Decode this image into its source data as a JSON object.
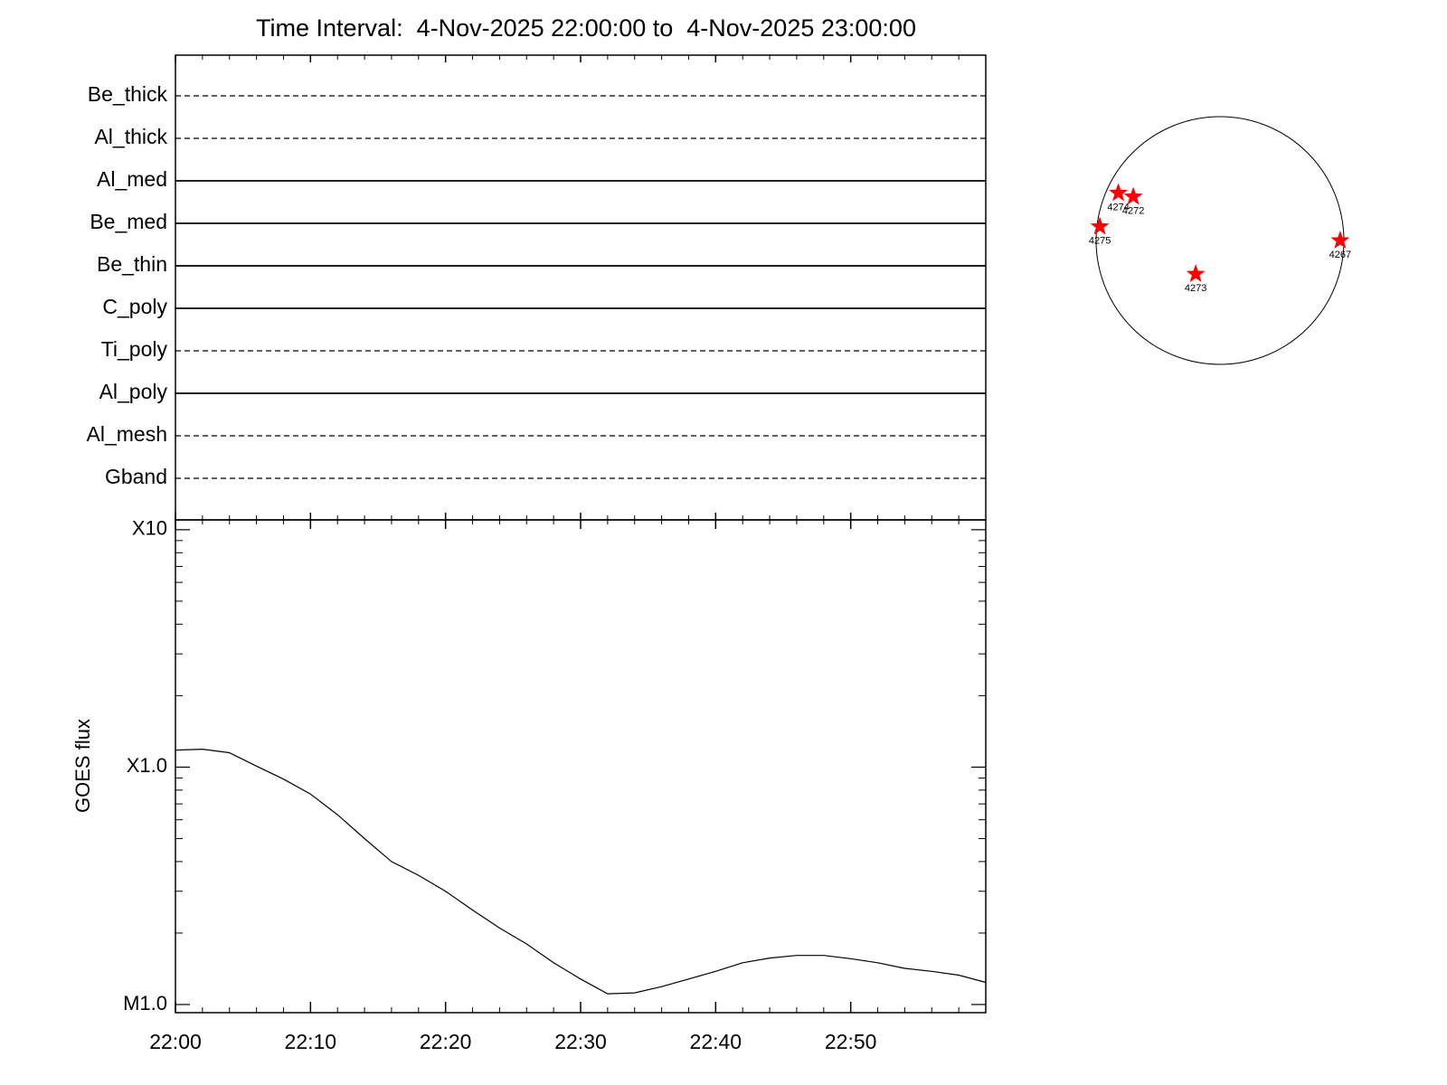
{
  "title": "Time Interval:  4-Nov-2025 22:00:00 to  4-Nov-2025 23:00:00",
  "chart_data": [
    {
      "type": "lines",
      "categories": [
        "Be_thick",
        "Al_thick",
        "Al_med",
        "Be_med",
        "Be_thin",
        "C_poly",
        "Ti_poly",
        "Al_poly",
        "Al_mesh",
        "Gband"
      ],
      "line_styles": [
        "dashed",
        "dashed",
        "solid",
        "solid",
        "solid",
        "solid",
        "dashed",
        "solid",
        "dashed",
        "dashed"
      ]
    },
    {
      "type": "line",
      "ylabel": "GOES flux",
      "color": "#000000",
      "log_y": true,
      "x": [
        "22:00",
        "22:02",
        "22:04",
        "22:06",
        "22:08",
        "22:10",
        "22:12",
        "22:14",
        "22:16",
        "22:18",
        "22:20",
        "22:22",
        "22:24",
        "22:26",
        "22:28",
        "22:30",
        "22:32",
        "22:34",
        "22:36",
        "22:38",
        "22:40",
        "22:42",
        "22:44",
        "22:46",
        "22:48",
        "22:50",
        "22:52",
        "22:54",
        "22:56",
        "22:58",
        "23:00"
      ],
      "values": [
        0.000118,
        0.000119,
        0.000115,
        0.000101,
        8.9e-05,
        7.7e-05,
        6.3e-05,
        5e-05,
        4e-05,
        3.5e-05,
        3e-05,
        2.5e-05,
        2.1e-05,
        1.8e-05,
        1.5e-05,
        1.28e-05,
        1.11e-05,
        1.12e-05,
        1.19e-05,
        1.28e-05,
        1.38e-05,
        1.5e-05,
        1.57e-05,
        1.61e-05,
        1.61e-05,
        1.56e-05,
        1.5e-05,
        1.42e-05,
        1.38e-05,
        1.33e-05,
        1.24e-05
      ],
      "xlim": [
        "22:00",
        "23:00"
      ],
      "xticks": [
        "22:00",
        "22:10",
        "22:20",
        "22:30",
        "22:40",
        "22:50"
      ],
      "ylim": [
        9.24e-06,
        0.0011
      ],
      "yticks": [
        {
          "value": 1e-05,
          "label": "M1.0"
        },
        {
          "value": 0.0001,
          "label": "X1.0"
        },
        {
          "value": 0.001,
          "label": "X10"
        }
      ]
    },
    {
      "type": "scatter",
      "color": "#ff0000",
      "labels": [
        "4274",
        "4272",
        "4275",
        "4273",
        "4267"
      ],
      "x": [
        -796,
        -679,
        -941,
        -190,
        941
      ],
      "y": [
        372,
        343,
        109,
        -263,
        0
      ],
      "xlim": [
        -970,
        970
      ],
      "ylim": [
        -970,
        970
      ]
    }
  ]
}
